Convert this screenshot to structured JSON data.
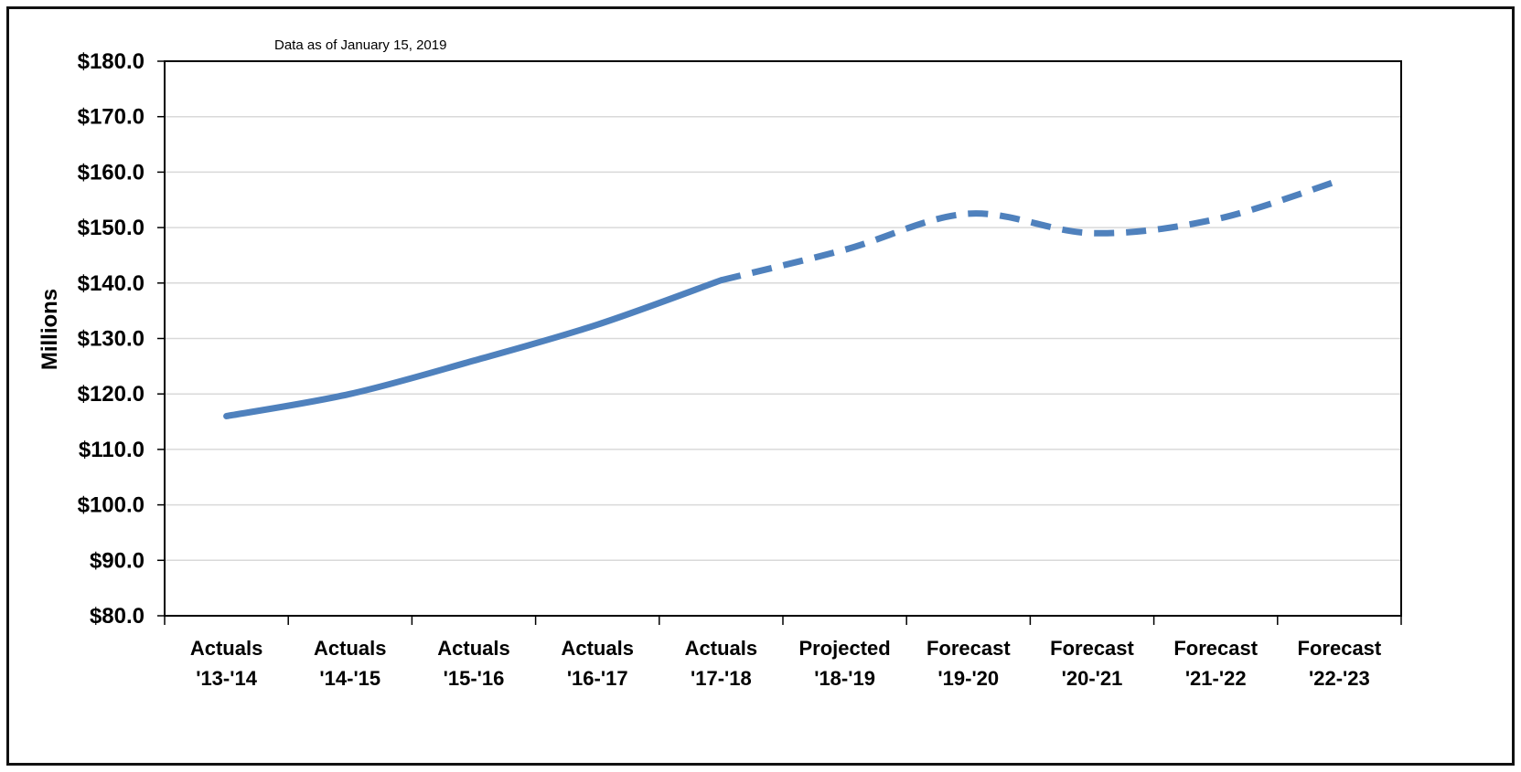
{
  "note": "Data as of January 15, 2019",
  "chart_data": {
    "type": "line",
    "title": "",
    "xlabel": "",
    "ylabel": "Millions",
    "ylim": [
      80,
      180
    ],
    "ytick_step": 10,
    "ytick_labels": [
      "$80.0",
      "$90.0",
      "$100.0",
      "$110.0",
      "$120.0",
      "$130.0",
      "$140.0",
      "$150.0",
      "$160.0",
      "$170.0",
      "$180.0"
    ],
    "grid": true,
    "categories": [
      [
        "Actuals",
        "'13-'14"
      ],
      [
        "Actuals",
        "'14-'15"
      ],
      [
        "Actuals",
        "'15-'16"
      ],
      [
        "Actuals",
        "'16-'17"
      ],
      [
        "Actuals",
        "'17-'18"
      ],
      [
        "Projected",
        "'18-'19"
      ],
      [
        "Forecast",
        "'19-'20"
      ],
      [
        "Forecast",
        "'20-'21"
      ],
      [
        "Forecast",
        "'21-'22"
      ],
      [
        "Forecast",
        "'22-'23"
      ]
    ],
    "series": [
      {
        "values": [
          116.0,
          120.0,
          126.0,
          132.5,
          140.5,
          146.0,
          152.5,
          149.0,
          151.5,
          158.5
        ],
        "color": "#4F81BD",
        "solid_through_index": 4
      }
    ]
  }
}
